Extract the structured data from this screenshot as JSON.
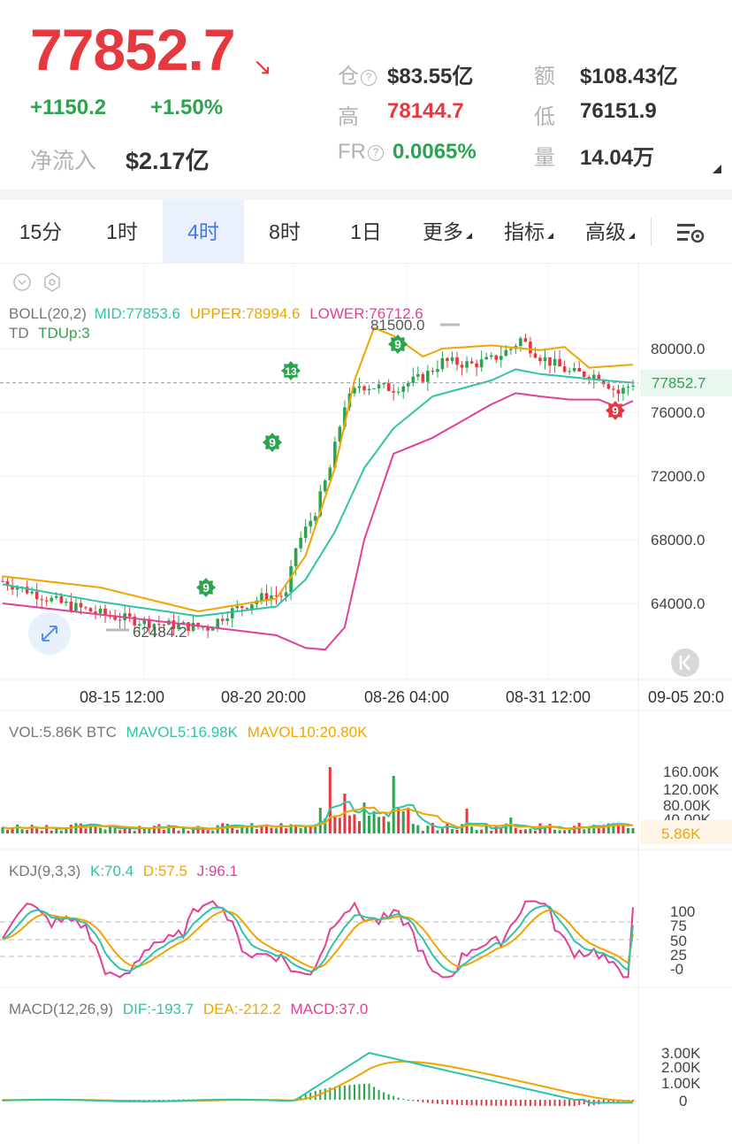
{
  "header": {
    "price": "77852.7",
    "change": "+1150.2",
    "change_pct": "+1.50%",
    "net_inflow_label": "净流入",
    "net_inflow": "$2.17亿",
    "oi_label": "仓",
    "oi": "$83.55亿",
    "turnover_label": "额",
    "turnover": "$108.43亿",
    "high_label": "高",
    "high": "78144.7",
    "low_label": "低",
    "low": "76151.9",
    "fr_label": "FR",
    "fr": "0.0065%",
    "volume_label": "量",
    "volume": "14.04万"
  },
  "tabs": [
    {
      "label": "15分"
    },
    {
      "label": "1时"
    },
    {
      "label": "4时",
      "active": true
    },
    {
      "label": "8时"
    },
    {
      "label": "1日"
    },
    {
      "label": "更多"
    },
    {
      "label": "指标"
    },
    {
      "label": "高级"
    }
  ],
  "colors": {
    "up": "#2aa44f",
    "down": "#e5393f",
    "mid": "#2ec4a6",
    "upper": "#f0a500",
    "lower": "#e0409a",
    "accent": "#3b78f0"
  },
  "main": {
    "boll": {
      "name": "BOLL(20,2)",
      "mid": "MID:77853.6",
      "upper": "UPPER:78994.6",
      "lower": "LOWER:76712.6"
    },
    "td": {
      "name": "TD",
      "value": "TDUp:3"
    },
    "yticks": [
      "80000.0",
      "76000.0",
      "72000.0",
      "68000.0",
      "64000.0"
    ],
    "last_price": "77852.7",
    "high_marker": "81500.0",
    "low_marker": "62484.2",
    "xticks": [
      "08-15 12:00",
      "08-20 20:00",
      "08-26 04:00",
      "08-31 12:00",
      "09-05 20:0"
    ],
    "td_markers": [
      {
        "label": "9",
        "color": "green"
      },
      {
        "label": "9",
        "color": "green"
      },
      {
        "label": "13",
        "color": "green"
      },
      {
        "label": "9",
        "color": "green"
      },
      {
        "label": "9",
        "color": "red"
      }
    ]
  },
  "vol": {
    "name": "VOL:5.86K BTC",
    "mavol5": "MAVOL5:16.98K",
    "mavol10": "MAVOL10:20.80K",
    "yticks": [
      "160.00K",
      "120.00K",
      "80.00K",
      "40.00K"
    ],
    "last": "5.86K"
  },
  "kdj": {
    "name": "KDJ(9,3,3)",
    "k": "K:70.4",
    "d": "D:57.5",
    "j": "J:96.1",
    "yticks": [
      "100",
      "75",
      "50",
      "25",
      "-0"
    ]
  },
  "macd": {
    "name": "MACD(12,26,9)",
    "dif": "DIF:-193.7",
    "dea": "DEA:-212.2",
    "macd": "MACD:37.0",
    "yticks": [
      "3.00K",
      "2.00K",
      "1.00K",
      "0"
    ]
  },
  "chart_data": {
    "type": "candlestick",
    "timeframe": "4时",
    "y_range": [
      61000,
      82500
    ],
    "candle_count": 130,
    "close_path": [
      [
        0,
        65400
      ],
      [
        12,
        64000
      ],
      [
        22,
        63200
      ],
      [
        32,
        62700
      ],
      [
        42,
        62484
      ],
      [
        46,
        63400
      ],
      [
        54,
        64500
      ],
      [
        58,
        64500
      ],
      [
        60,
        67500
      ],
      [
        64,
        69800
      ],
      [
        67,
        72500
      ],
      [
        70,
        76500
      ],
      [
        73,
        77700
      ],
      [
        80,
        77500
      ],
      [
        86,
        78200
      ],
      [
        90,
        79200
      ],
      [
        96,
        79000
      ],
      [
        100,
        79300
      ],
      [
        104,
        80000
      ],
      [
        106,
        80600
      ],
      [
        110,
        79500
      ],
      [
        116,
        78500
      ],
      [
        122,
        78300
      ],
      [
        126,
        77200
      ],
      [
        129,
        77852.7
      ]
    ],
    "boll_upper": [
      [
        0,
        65700
      ],
      [
        20,
        65000
      ],
      [
        40,
        63500
      ],
      [
        56,
        64300
      ],
      [
        62,
        67000
      ],
      [
        68,
        72500
      ],
      [
        72,
        78000
      ],
      [
        76,
        81300
      ],
      [
        80,
        80800
      ],
      [
        86,
        79500
      ],
      [
        90,
        80000
      ],
      [
        100,
        80200
      ],
      [
        110,
        79900
      ],
      [
        115,
        80100
      ],
      [
        120,
        78800
      ],
      [
        129,
        78994.6
      ]
    ],
    "boll_mid": [
      [
        0,
        65200
      ],
      [
        20,
        64100
      ],
      [
        40,
        63200
      ],
      [
        56,
        63800
      ],
      [
        62,
        65500
      ],
      [
        68,
        68500
      ],
      [
        74,
        72500
      ],
      [
        80,
        75000
      ],
      [
        88,
        77000
      ],
      [
        100,
        78000
      ],
      [
        105,
        78700
      ],
      [
        110,
        78400
      ],
      [
        120,
        78100
      ],
      [
        129,
        77853.6
      ]
    ],
    "boll_lower": [
      [
        0,
        64000
      ],
      [
        20,
        63300
      ],
      [
        40,
        62600
      ],
      [
        56,
        62000
      ],
      [
        62,
        61200
      ],
      [
        66,
        61100
      ],
      [
        70,
        62500
      ],
      [
        74,
        68000
      ],
      [
        80,
        73400
      ],
      [
        88,
        74400
      ],
      [
        100,
        76500
      ],
      [
        105,
        77200
      ],
      [
        110,
        77000
      ],
      [
        116,
        76800
      ],
      [
        122,
        76800
      ],
      [
        126,
        76300
      ],
      [
        129,
        76712.6
      ]
    ]
  }
}
